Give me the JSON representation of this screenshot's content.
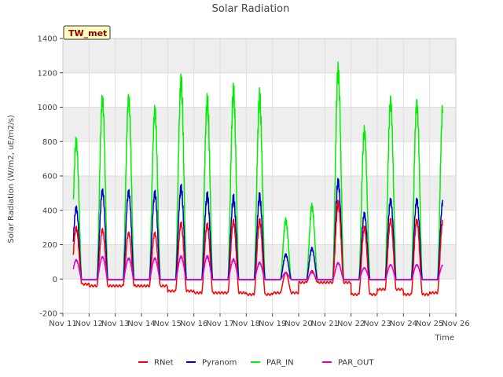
{
  "chart_data": {
    "type": "line",
    "title": "Solar Radiation",
    "xlabel": "Time",
    "ylabel": "Solar Radiation (W/m2, uE/m2/s)",
    "badge": "TW_met",
    "ylim": [
      -200,
      1400
    ],
    "yticks": [
      -200,
      0,
      200,
      400,
      600,
      800,
      1000,
      1200,
      1400
    ],
    "xlim": [
      11,
      26
    ],
    "xticks": [
      {
        "value": 11,
        "label": "Nov 11"
      },
      {
        "value": 12,
        "label": "Nov 12"
      },
      {
        "value": 13,
        "label": "Nov 13"
      },
      {
        "value": 14,
        "label": "Nov 14"
      },
      {
        "value": 15,
        "label": "Nov 15"
      },
      {
        "value": 16,
        "label": "Nov 16"
      },
      {
        "value": 17,
        "label": "Nov 17"
      },
      {
        "value": 18,
        "label": "Nov 18"
      },
      {
        "value": 19,
        "label": "Nov 19"
      },
      {
        "value": 20,
        "label": "Nov 20"
      },
      {
        "value": 21,
        "label": "Nov 21"
      },
      {
        "value": 22,
        "label": "Nov 22"
      },
      {
        "value": 23,
        "label": "Nov 23"
      },
      {
        "value": 24,
        "label": "Nov 24"
      },
      {
        "value": 25,
        "label": "Nov 25"
      },
      {
        "value": 26,
        "label": "Nov 26"
      }
    ],
    "grid": true,
    "legend_position": "bottom",
    "x_start": 11.4,
    "x_end": 25.5,
    "daylight": {
      "sunrise": 0.3,
      "sunset": 0.72
    },
    "days": [
      11,
      12,
      13,
      14,
      15,
      16,
      17,
      18,
      19,
      20,
      21,
      22,
      23,
      24,
      25
    ],
    "series": [
      {
        "name": "RNet",
        "color": "#ff0000",
        "daily_peak": [
          320,
          310,
          290,
          290,
          350,
          340,
          360,
          360,
          40,
          50,
          470,
          320,
          370,
          370,
          370
        ],
        "night_level": [
          -30,
          -40,
          -40,
          -40,
          -70,
          -80,
          -80,
          -90,
          -80,
          -20,
          -20,
          -90,
          -60,
          -90,
          -80
        ]
      },
      {
        "name": "Pyranom",
        "color": "#0000cc",
        "daily_peak": [
          450,
          560,
          550,
          540,
          570,
          520,
          500,
          510,
          150,
          190,
          610,
          410,
          500,
          500,
          500
        ],
        "night_level": [
          -5,
          -5,
          -5,
          -5,
          -5,
          -5,
          -5,
          -5,
          -5,
          -5,
          -5,
          -5,
          -5,
          -5,
          -5
        ]
      },
      {
        "name": "PAR_IN",
        "color": "#00ee00",
        "daily_peak": [
          870,
          1140,
          1140,
          1060,
          1240,
          1110,
          1160,
          1120,
          360,
          450,
          1300,
          930,
          1120,
          1110,
          1110
        ],
        "night_level": [
          -5,
          -5,
          -5,
          -5,
          -5,
          -5,
          -5,
          -5,
          -5,
          -5,
          -5,
          -5,
          -5,
          -5,
          -5
        ]
      },
      {
        "name": "PAR_OUT",
        "color": "#dd00dd",
        "daily_peak": [
          120,
          140,
          130,
          130,
          140,
          140,
          120,
          100,
          40,
          40,
          100,
          70,
          90,
          90,
          90
        ],
        "night_level": [
          -3,
          -3,
          -3,
          -3,
          -3,
          -3,
          -3,
          -3,
          -3,
          -3,
          -3,
          -3,
          -3,
          -3,
          -3
        ]
      }
    ]
  }
}
